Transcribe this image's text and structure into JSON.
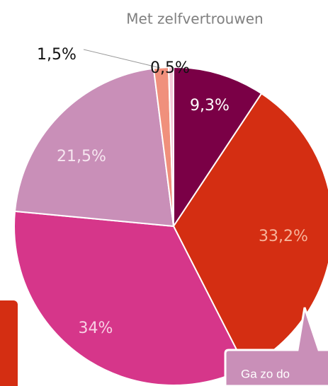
{
  "chart_data": {
    "type": "pie",
    "values": [
      9.3,
      33.2,
      34,
      21.5,
      1.5,
      0.5
    ],
    "value_labels": [
      "9,3%",
      "33,2%",
      "34%",
      "21,5%",
      "1,5%",
      "0,5%"
    ],
    "colors": [
      "#7a0046",
      "#d42e12",
      "#d6368a",
      "#c98fb8",
      "#f0907c",
      "#f5c8d8"
    ],
    "annotation": "Met zelfvertrouwen"
  },
  "callout": {
    "text": "Ga zo do"
  }
}
